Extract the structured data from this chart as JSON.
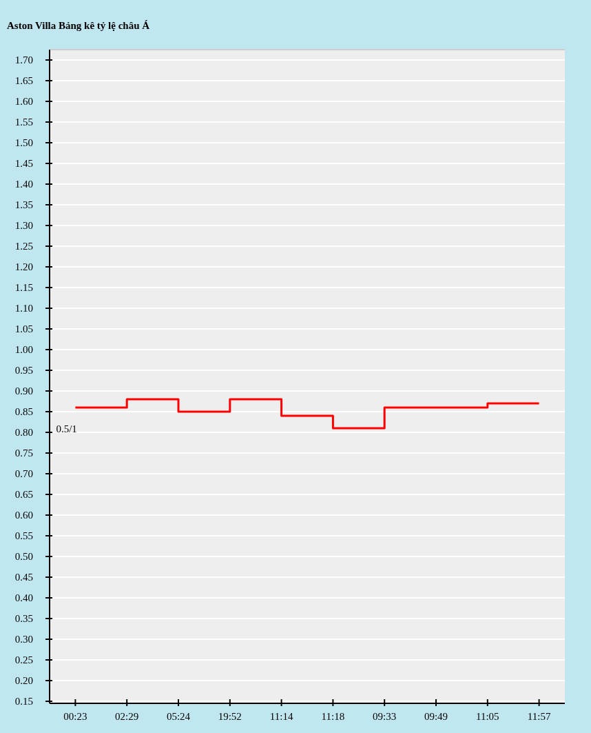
{
  "chart_data": {
    "type": "step",
    "title": "Aston Villa Bảng kê tỷ lệ châu Á",
    "categories": [
      "00:23",
      "02:29",
      "05:24",
      "19:52",
      "11:14",
      "11:18",
      "09:33",
      "09:49",
      "11:05",
      "11:57"
    ],
    "series": [
      {
        "color": "#ff0000",
        "values": [
          0.86,
          0.88,
          0.85,
          0.88,
          0.84,
          0.81,
          0.86,
          0.86,
          0.87,
          0.87
        ]
      }
    ],
    "annotations": [
      "0.5/1"
    ],
    "ylim": [
      0.145,
      1.725
    ],
    "yticks": [
      0.15,
      {
        "value": 0.2,
        "label": "0.20"
      },
      0.25,
      {
        "value": 0.3,
        "label": "0.30"
      },
      0.35,
      {
        "value": 0.4,
        "label": "0.40"
      },
      0.45,
      {
        "value": 0.5,
        "label": "0.50"
      },
      0.55,
      {
        "value": 0.6,
        "label": "0.60"
      },
      0.65,
      {
        "value": 0.7,
        "label": "0.70"
      },
      0.75,
      {
        "value": 0.8,
        "label": "0.80"
      },
      0.85,
      {
        "value": 0.9,
        "label": "0.90"
      },
      0.95,
      {
        "value": 1,
        "label": "1.00"
      },
      1.05,
      {
        "value": 1.1,
        "label": "1.10"
      },
      1.15,
      {
        "value": 1.2,
        "label": "1.20"
      },
      1.25,
      {
        "value": 1.3,
        "label": "1.30"
      },
      1.35,
      {
        "value": 1.4,
        "label": "1.40"
      },
      1.45,
      {
        "value": 1.5,
        "label": "1.50"
      },
      1.55,
      {
        "value": 1.6,
        "label": "1.60"
      },
      1.65,
      {
        "value": 1.7,
        "label": "1.70"
      }
    ],
    "grid": "y"
  }
}
